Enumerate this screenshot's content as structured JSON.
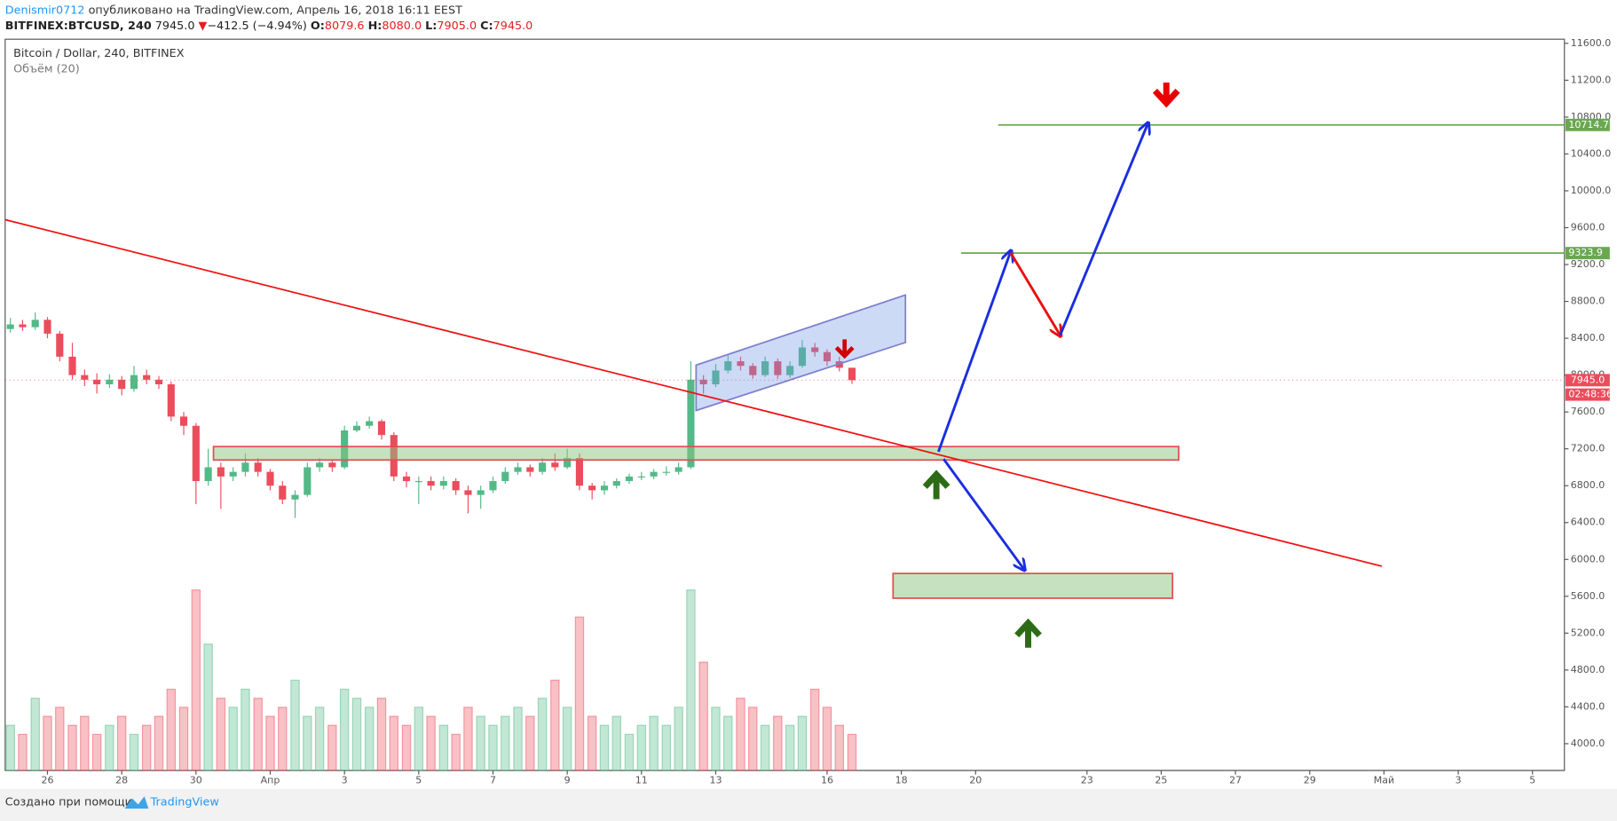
{
  "header": {
    "author": "Denismir0712",
    "published": "опубликовано на TradingView.com, Апрель 16, 2018 16:11 EEST",
    "symbol": "BITFINEX:BTCUSD, 240",
    "last": "7945.0",
    "direction": "▼",
    "change": "−412.5 (−4.94%)",
    "open_label": "O:",
    "open": "8079.6",
    "high_label": "H:",
    "high": "8080.0",
    "low_label": "L:",
    "low": "7905.0",
    "close_label": "C:",
    "close": "7945.0"
  },
  "chart_data": {
    "type": "candlestick",
    "title": "Bitcoin / Dollar, 240, BITFINEX",
    "subtitle": "Объём (20)",
    "x": [
      25,
      25.33,
      25.67,
      26,
      26.33,
      26.67,
      27,
      27.33,
      27.67,
      28,
      28.33,
      28.67,
      29,
      29.33,
      29.67,
      30,
      30.33,
      30.67,
      31,
      31.33,
      31.67,
      32,
      32.33,
      32.67,
      33,
      33.33,
      33.67,
      34,
      34.33,
      34.67,
      35,
      35.33,
      35.67,
      36,
      36.33,
      36.67,
      37,
      37.33,
      37.67,
      38,
      38.33,
      38.67,
      39,
      39.33,
      39.67,
      40,
      40.33,
      40.67,
      41,
      41.33,
      41.67,
      42,
      42.33,
      42.67,
      43,
      43.33,
      43.67,
      44,
      44.33,
      44.67,
      45,
      45.33,
      45.67,
      46,
      46.33,
      46.67,
      47,
      47.33,
      47.67
    ],
    "open": [
      8500,
      8550,
      8520,
      8600,
      8450,
      8200,
      8000,
      7950,
      7900,
      7950,
      7850,
      8000,
      7950,
      7900,
      7550,
      7450,
      6850,
      7000,
      6900,
      6950,
      7050,
      6950,
      6800,
      6650,
      6700,
      7000,
      7050,
      7000,
      7400,
      7450,
      7500,
      7350,
      6900,
      6850,
      6850,
      6800,
      6850,
      6750,
      6700,
      6750,
      6850,
      6950,
      7000,
      6950,
      7050,
      7000,
      7100,
      6800,
      6750,
      6800,
      6850,
      6900,
      6900,
      6950,
      6950,
      7000,
      7950,
      7900,
      8050,
      8150,
      8100,
      8000,
      8150,
      8000,
      8100,
      8300,
      8250,
      8150,
      8079.6
    ],
    "high": [
      8620,
      8600,
      8680,
      8630,
      8480,
      8350,
      8060,
      8020,
      8010,
      7990,
      8100,
      8060,
      7990,
      7930,
      7600,
      7480,
      7200,
      7050,
      7000,
      7150,
      7100,
      6980,
      6850,
      6750,
      7050,
      7100,
      7080,
      7450,
      7500,
      7550,
      7520,
      7380,
      6950,
      6900,
      6900,
      6900,
      6880,
      6800,
      6800,
      6900,
      7000,
      7050,
      7030,
      7100,
      7150,
      7200,
      7150,
      6830,
      6850,
      6880,
      6930,
      6950,
      6980,
      7010,
      7050,
      8150,
      8000,
      8120,
      8220,
      8200,
      8130,
      8200,
      8180,
      8150,
      8380,
      8350,
      8280,
      8200,
      8080
    ],
    "low": [
      8460,
      8480,
      8490,
      8400,
      8150,
      7950,
      7880,
      7800,
      7860,
      7780,
      7820,
      7900,
      7850,
      7500,
      7350,
      6600,
      6800,
      6550,
      6850,
      6900,
      6900,
      6750,
      6600,
      6450,
      6680,
      6950,
      6950,
      6980,
      7380,
      7420,
      7300,
      6850,
      6780,
      6600,
      6750,
      6760,
      6700,
      6500,
      6550,
      6720,
      6820,
      6920,
      6900,
      6920,
      6960,
      6980,
      6750,
      6650,
      6700,
      6770,
      6820,
      6860,
      6870,
      6910,
      6920,
      6980,
      7800,
      7870,
      8020,
      8050,
      7960,
      7980,
      7960,
      7970,
      8080,
      8200,
      8100,
      8040,
      7905
    ],
    "close": [
      8550,
      8520,
      8600,
      8450,
      8200,
      8000,
      7950,
      7900,
      7950,
      7850,
      8000,
      7950,
      7900,
      7550,
      7450,
      6850,
      7000,
      6900,
      6950,
      7050,
      6950,
      6800,
      6650,
      6700,
      7000,
      7050,
      7000,
      7400,
      7450,
      7500,
      7350,
      6900,
      6850,
      6850,
      6800,
      6850,
      6750,
      6700,
      6750,
      6850,
      6950,
      7000,
      6950,
      7050,
      7000,
      7100,
      6800,
      6750,
      6800,
      6850,
      6900,
      6900,
      6950,
      6950,
      7000,
      7950,
      7900,
      8050,
      8150,
      8100,
      8000,
      8150,
      8000,
      8100,
      8300,
      8250,
      8150,
      8080,
      7945
    ],
    "volume": [
      25,
      20,
      40,
      30,
      35,
      25,
      30,
      20,
      25,
      30,
      20,
      25,
      30,
      45,
      35,
      100,
      70,
      40,
      35,
      45,
      40,
      30,
      35,
      50,
      30,
      35,
      25,
      45,
      40,
      35,
      40,
      30,
      25,
      35,
      30,
      25,
      20,
      35,
      30,
      25,
      30,
      35,
      30,
      40,
      50,
      35,
      85,
      30,
      25,
      30,
      20,
      25,
      30,
      25,
      35,
      100,
      60,
      35,
      30,
      40,
      35,
      25,
      30,
      25,
      30,
      45,
      35,
      25,
      20
    ],
    "up_color": "#53b987",
    "down_color": "#eb4d5c",
    "xlim": [
      24.86,
      66.86
    ],
    "ylim": [
      3710,
      11645
    ],
    "xticks": [
      26,
      28,
      30,
      {
        "value": 32,
        "label": "Апр"
      },
      {
        "value": 34,
        "label": "3"
      },
      {
        "value": 36,
        "label": "5"
      },
      {
        "value": 38,
        "label": "7"
      },
      {
        "value": 40,
        "label": "9"
      },
      {
        "value": 42,
        "label": "11"
      },
      {
        "value": 44,
        "label": "13"
      },
      {
        "value": 47,
        "label": "16"
      },
      {
        "value": 49,
        "label": "18"
      },
      {
        "value": 51,
        "label": "20"
      },
      {
        "value": 54,
        "label": "23"
      },
      {
        "value": 56,
        "label": "25"
      },
      {
        "value": 58,
        "label": "27"
      },
      {
        "value": 60,
        "label": "29"
      },
      {
        "value": 62,
        "label": "Май"
      },
      {
        "value": 64,
        "label": "3"
      },
      {
        "value": 66,
        "label": "5"
      }
    ],
    "yticks": [
      {
        "value": 4000,
        "label": "4000.0"
      },
      {
        "value": 4400,
        "label": "4400.0"
      },
      {
        "value": 4800,
        "label": "4800.0"
      },
      {
        "value": 5200,
        "label": "5200.0"
      },
      {
        "value": 5600,
        "label": "5600.0"
      },
      {
        "value": 6000,
        "label": "6000.0"
      },
      {
        "value": 6400,
        "label": "6400.0"
      },
      {
        "value": 6800,
        "label": "6800.0"
      },
      {
        "value": 7200,
        "label": "7200.0"
      },
      {
        "value": 7600,
        "label": "7600.0"
      },
      {
        "value": 8000,
        "label": "8000.0"
      },
      {
        "value": 8400,
        "label": "8400.0"
      },
      {
        "value": 8800,
        "label": "8800.0"
      },
      {
        "value": 9200,
        "label": "9200.0"
      },
      {
        "value": 9600,
        "label": "9600.0"
      },
      {
        "value": 10000,
        "label": "10000.0"
      },
      {
        "value": 10400,
        "label": "10400.0"
      },
      {
        "value": 10800,
        "label": "10800.0"
      },
      {
        "value": 11200,
        "label": "11200.0"
      },
      {
        "value": 11600,
        "label": "11600.0"
      }
    ],
    "levels": [
      10714.7,
      9323.9
    ],
    "level_color": "#6aa84f",
    "last_price": {
      "value": 7945,
      "label": "7945.0"
    },
    "countdown": "02:48:36"
  },
  "footer": {
    "text": "Создано при помощи",
    "brand": "TradingView"
  }
}
